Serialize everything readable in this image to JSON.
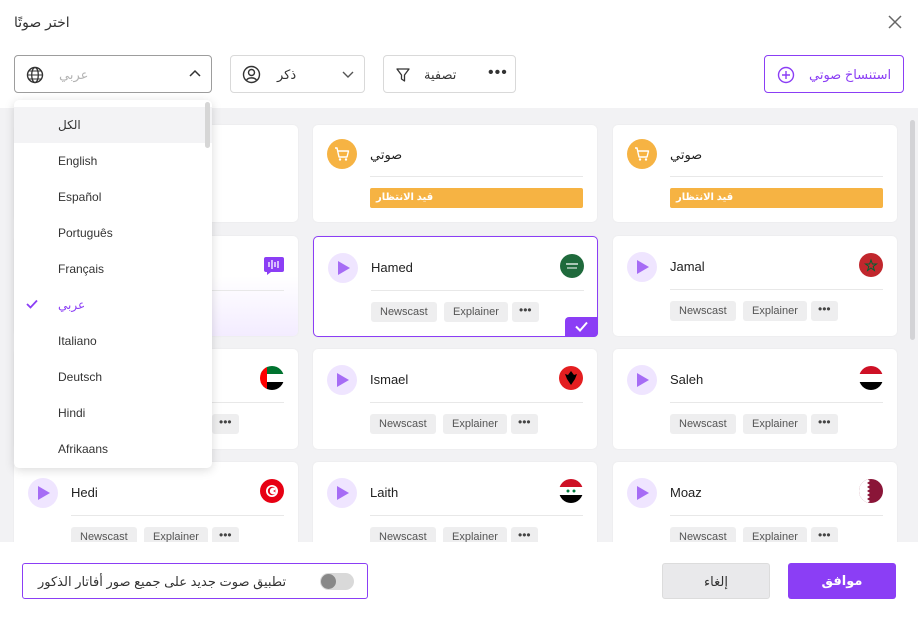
{
  "dialog": {
    "title": "اختر صوتًا"
  },
  "toolbar": {
    "language_value": "عربي",
    "gender_value": "ذكر",
    "filter_label": "تصفية",
    "clone_label": "استنساخ صوتي"
  },
  "language_dropdown": {
    "items": [
      "الكل",
      "English",
      "Español",
      "Português",
      "Français",
      "عربي",
      "Italiano",
      "Deutsch",
      "Hindi",
      "Afrikaans"
    ],
    "hovered": "الكل",
    "selected": "عربي"
  },
  "cards": {
    "my_voice_1": {
      "name": "صوتي",
      "status": "قيد الانتظار"
    },
    "my_voice_2": {
      "name": "صوتي",
      "status": "قيد الانتظار"
    },
    "hamed": {
      "name": "Hamed",
      "tags": [
        "Newscast",
        "Explainer"
      ],
      "selected": true
    },
    "jamal": {
      "name": "Jamal",
      "tags": [
        "Newscast",
        "Explainer"
      ]
    },
    "ismael": {
      "name": "Ismael",
      "tags": [
        "Newscast",
        "Explainer"
      ]
    },
    "saleh": {
      "name": "Saleh",
      "tags": [
        "Newscast",
        "Explainer"
      ]
    },
    "hedi": {
      "name": "Hedi",
      "tags": [
        "Newscast",
        "Explainer"
      ]
    },
    "laith": {
      "name": "Laith",
      "tags": [
        "Newscast",
        "Explainer"
      ]
    },
    "moaz": {
      "name": "Moaz",
      "tags": [
        "Newscast",
        "Explainer"
      ]
    },
    "more_label": "•••"
  },
  "footer": {
    "apply_all_label": "تطبيق صوت جديد على جميع صور أفاتار الذكور",
    "apply_all_enabled": false,
    "cancel_label": "إلغاء",
    "ok_label": "موافق"
  },
  "colors": {
    "accent": "#8b3ef5",
    "pending": "#f6b343"
  }
}
